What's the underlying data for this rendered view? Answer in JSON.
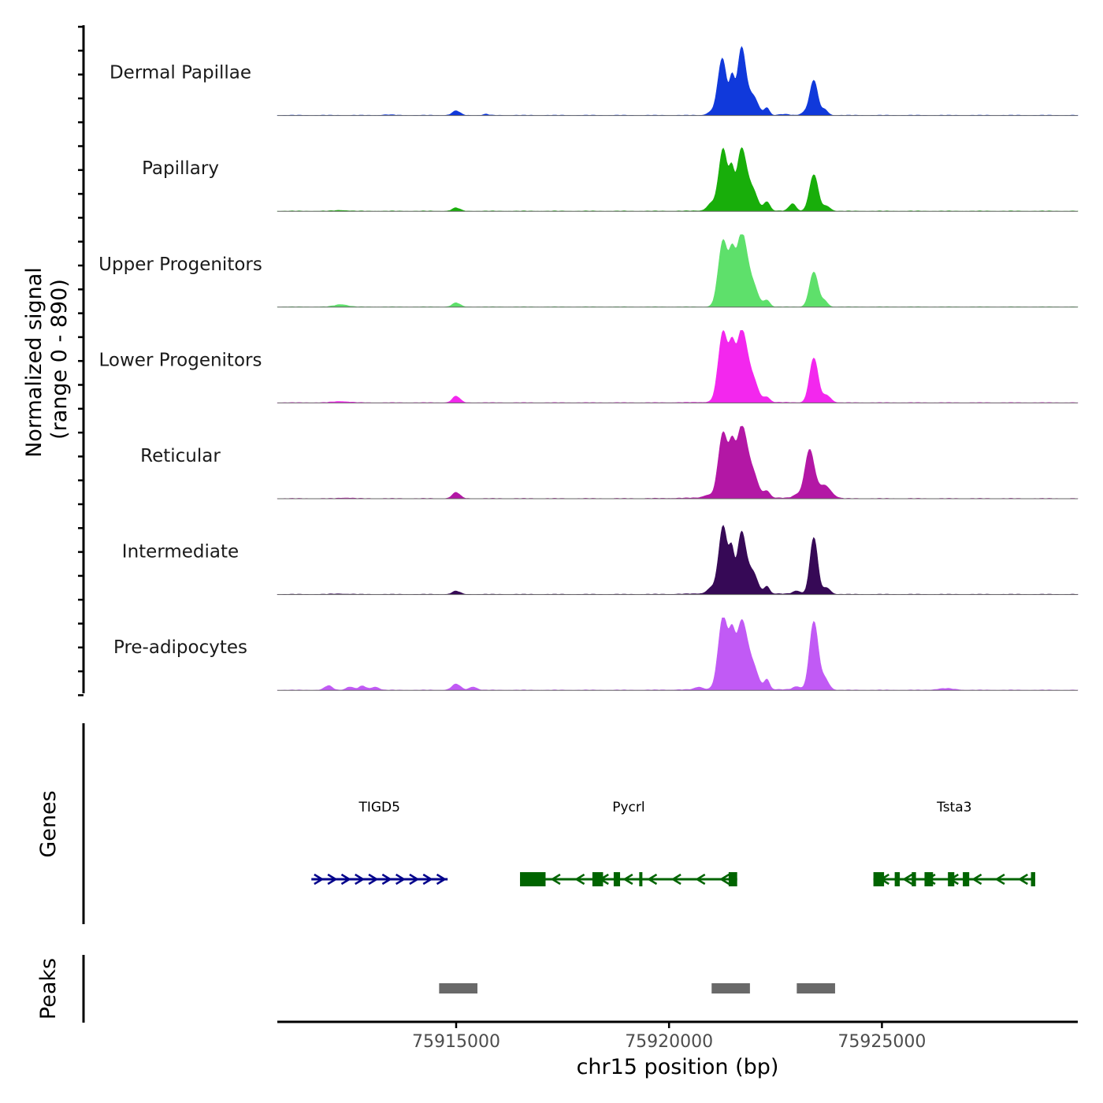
{
  "chart_data": {
    "type": "area",
    "title": "",
    "chromosome": "chr15",
    "xlabel": "chr15 position (bp)",
    "ylabel": [
      "Normalized signal",
      "(range 0 - 890)"
    ],
    "xlim": [
      75910800,
      75929600
    ],
    "ylim": [
      0,
      890
    ],
    "xticks": [
      75915000,
      75920000,
      75925000
    ],
    "xtick_labels": [
      "75915000",
      "75920000",
      "75925000"
    ],
    "grid": false,
    "legend": "none",
    "tracks": [
      {
        "name": "Dermal Papillae",
        "color": "#1039DB",
        "peaks": [
          [
            75913400,
            6,
            150
          ],
          [
            75915000,
            55,
            90
          ],
          [
            75915700,
            14,
            60
          ],
          [
            75921700,
            22,
            90
          ],
          [
            75921000,
            40,
            100
          ],
          [
            75921250,
            700,
            100
          ],
          [
            75921480,
            420,
            60
          ],
          [
            75921700,
            780,
            95
          ],
          [
            75921950,
            250,
            130
          ],
          [
            75922300,
            90,
            60
          ],
          [
            75922700,
            12,
            120
          ],
          [
            75923200,
            40,
            90
          ],
          [
            75923400,
            430,
            90
          ],
          [
            75923650,
            70,
            80
          ]
        ]
      },
      {
        "name": "Papillary",
        "color": "#18AE0A",
        "peaks": [
          [
            75912300,
            10,
            150
          ],
          [
            75915000,
            40,
            90
          ],
          [
            75921600,
            8,
            700
          ],
          [
            75921000,
            90,
            100
          ],
          [
            75921270,
            760,
            100
          ],
          [
            75921470,
            400,
            60
          ],
          [
            75921700,
            740,
            110
          ],
          [
            75921950,
            260,
            120
          ],
          [
            75922300,
            110,
            70
          ],
          [
            75922900,
            90,
            80
          ],
          [
            75923400,
            450,
            100
          ],
          [
            75923700,
            60,
            90
          ]
        ]
      },
      {
        "name": "Upper Progenitors",
        "color": "#5EE06B",
        "peaks": [
          [
            75912300,
            30,
            150
          ],
          [
            75915000,
            50,
            90
          ],
          [
            75921270,
            820,
            110
          ],
          [
            75921480,
            480,
            70
          ],
          [
            75921700,
            880,
            120
          ],
          [
            75921950,
            280,
            130
          ],
          [
            75922300,
            80,
            70
          ],
          [
            75923400,
            430,
            100
          ],
          [
            75923650,
            70,
            80
          ]
        ]
      },
      {
        "name": "Lower Progenitors",
        "color": "#F327EE",
        "peaks": [
          [
            75912300,
            16,
            200
          ],
          [
            75915000,
            80,
            90
          ],
          [
            75921600,
            10,
            800
          ],
          [
            75921270,
            870,
            110
          ],
          [
            75921480,
            500,
            70
          ],
          [
            75921700,
            850,
            120
          ],
          [
            75921950,
            290,
            130
          ],
          [
            75922300,
            60,
            70
          ],
          [
            75923400,
            550,
            100
          ],
          [
            75923700,
            90,
            100
          ]
        ]
      },
      {
        "name": "Reticular",
        "color": "#B317A5",
        "peaks": [
          [
            75912400,
            8,
            150
          ],
          [
            75915000,
            75,
            90
          ],
          [
            75921600,
            14,
            900
          ],
          [
            75920900,
            30,
            100
          ],
          [
            75921270,
            800,
            110
          ],
          [
            75921480,
            470,
            70
          ],
          [
            75921700,
            840,
            120
          ],
          [
            75921950,
            310,
            130
          ],
          [
            75922300,
            80,
            70
          ],
          [
            75923000,
            40,
            90
          ],
          [
            75923300,
            590,
            110
          ],
          [
            75923650,
            160,
            150
          ]
        ]
      },
      {
        "name": "Intermediate",
        "color": "#360956",
        "peaks": [
          [
            75912300,
            6,
            200
          ],
          [
            75915000,
            40,
            90
          ],
          [
            75921600,
            14,
            800
          ],
          [
            75921000,
            70,
            100
          ],
          [
            75921270,
            830,
            100
          ],
          [
            75921470,
            450,
            60
          ],
          [
            75921700,
            730,
            100
          ],
          [
            75921950,
            270,
            120
          ],
          [
            75922300,
            90,
            60
          ],
          [
            75923000,
            40,
            90
          ],
          [
            75923400,
            700,
            90
          ],
          [
            75923700,
            80,
            90
          ]
        ]
      },
      {
        "name": "Pre-adipocytes",
        "color": "#C15AF5",
        "peaks": [
          [
            75912000,
            55,
            90
          ],
          [
            75912500,
            40,
            90
          ],
          [
            75912800,
            50,
            90
          ],
          [
            75913100,
            40,
            90
          ],
          [
            75915000,
            75,
            100
          ],
          [
            75915400,
            40,
            90
          ],
          [
            75921600,
            14,
            900
          ],
          [
            75920700,
            30,
            90
          ],
          [
            75921270,
            900,
            110
          ],
          [
            75921480,
            500,
            70
          ],
          [
            75921700,
            800,
            120
          ],
          [
            75921950,
            300,
            130
          ],
          [
            75922300,
            120,
            60
          ],
          [
            75923000,
            40,
            90
          ],
          [
            75923400,
            840,
            100
          ],
          [
            75923650,
            140,
            100
          ],
          [
            75926500,
            20,
            200
          ]
        ]
      }
    ],
    "genes": [
      {
        "name": "TIGD5",
        "strand": "+",
        "color": "#00008B",
        "start": 75911600,
        "end": 75914800,
        "exons": [],
        "intron_arrows": 10
      },
      {
        "name": "Pycrl",
        "strand": "-",
        "color": "#006400",
        "start": 75916500,
        "end": 75921600,
        "exons": [
          [
            75916500,
            75917100
          ],
          [
            75918200,
            75918450
          ],
          [
            75918700,
            75918850
          ],
          [
            75919300,
            75919350
          ],
          [
            75921400,
            75921600
          ]
        ],
        "intron_arrows": 9
      },
      {
        "name": "Tsta3",
        "strand": "-",
        "color": "#006400",
        "start": 75924800,
        "end": 75928600,
        "exons": [
          [
            75924800,
            75925050
          ],
          [
            75925300,
            75925420
          ],
          [
            75925700,
            75925800
          ],
          [
            75926000,
            75926200
          ],
          [
            75926550,
            75926700
          ],
          [
            75926900,
            75927050
          ],
          [
            75928500,
            75928600
          ]
        ],
        "intron_arrows": 7
      }
    ],
    "peaks_track": {
      "name": "Peaks",
      "color": "#696969",
      "regions": [
        [
          75914600,
          75915500
        ],
        [
          75921000,
          75921900
        ],
        [
          75923000,
          75923900
        ]
      ]
    },
    "genes_track_label": "Genes"
  }
}
